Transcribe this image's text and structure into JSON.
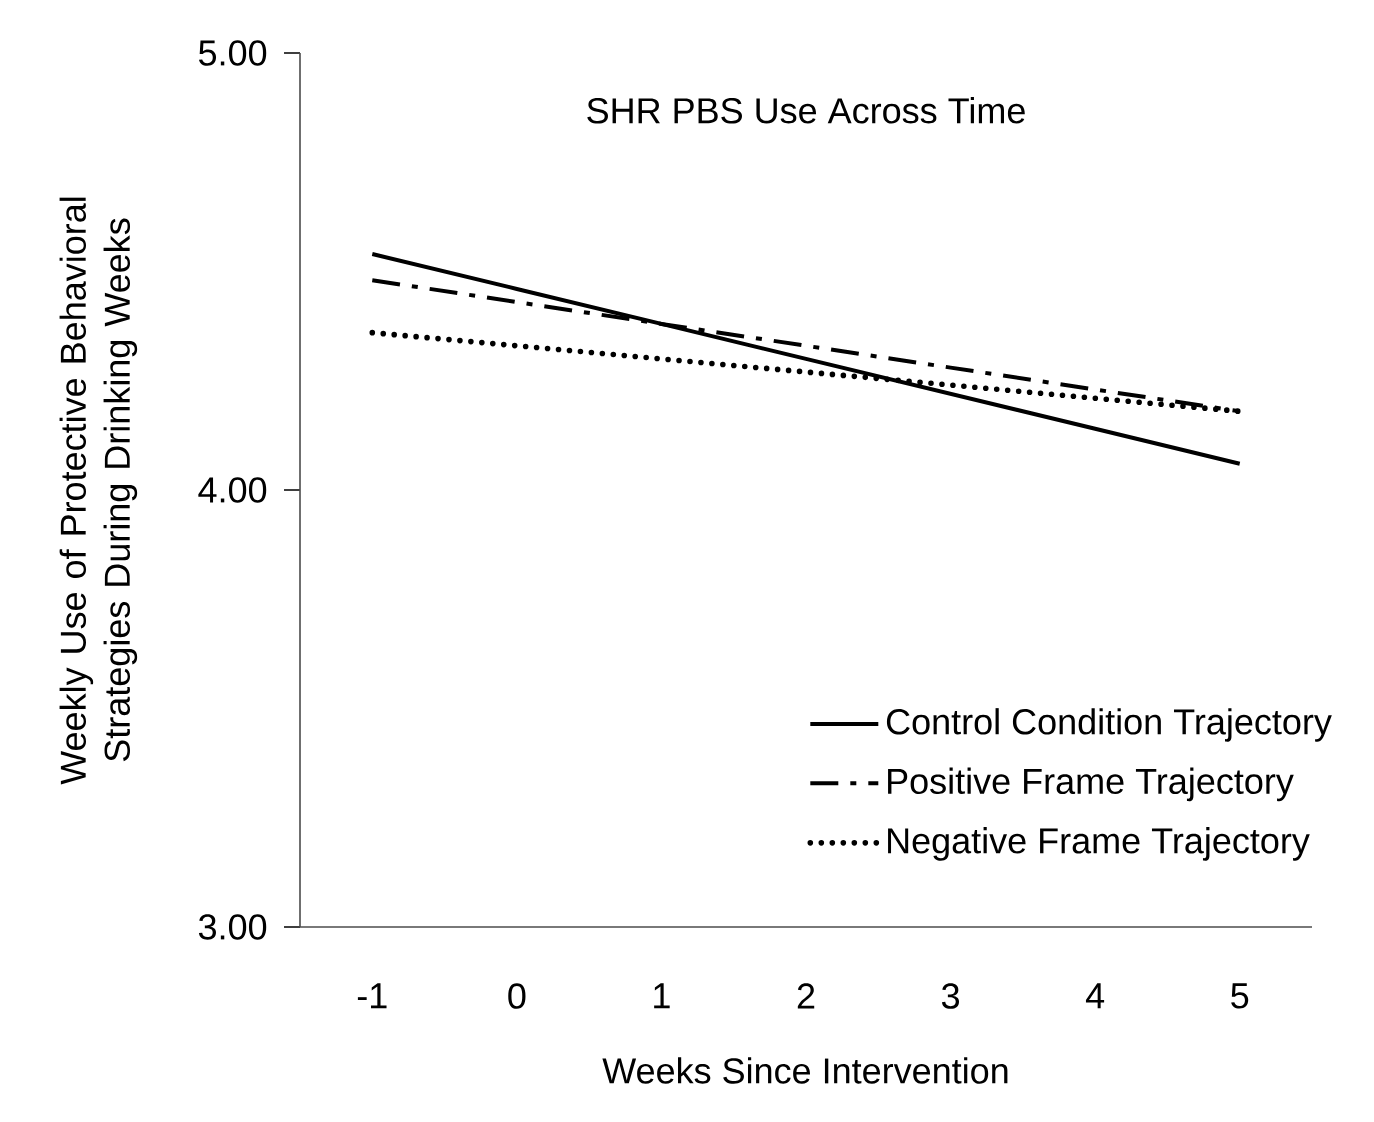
{
  "chart_data": {
    "type": "line",
    "title": "SHR PBS Use Across Time",
    "xlabel": "Weeks Since Intervention",
    "ylabel": "Weekly Use of Protective Behavioral Strategies During Drinking Weeks",
    "categories": [
      "-1",
      "0",
      "1",
      "2",
      "3",
      "4",
      "5"
    ],
    "ylim": [
      3,
      5
    ],
    "yticks": [
      {
        "value": 3,
        "label": "3.00"
      },
      {
        "value": 4,
        "label": "4.00"
      },
      {
        "value": 5,
        "label": "5.00"
      }
    ],
    "grid": false,
    "legend": "bottom right",
    "series": [
      {
        "name": "Control Condition Trajectory",
        "color": "#000000",
        "line_style": "solid",
        "values": [
          4.54,
          4.46,
          4.38,
          4.3,
          4.22,
          4.14,
          4.06
        ]
      },
      {
        "name": "Positive Frame Trajectory",
        "color": "#000000",
        "line_style": "dashdot",
        "values": [
          4.48,
          4.43,
          4.38,
          4.33,
          4.28,
          4.23,
          4.18
        ]
      },
      {
        "name": "Negative Frame Trajectory",
        "color": "#000000",
        "line_style": "dotted",
        "values": [
          4.36,
          4.33,
          4.3,
          4.27,
          4.24,
          4.21,
          4.18
        ]
      }
    ]
  }
}
